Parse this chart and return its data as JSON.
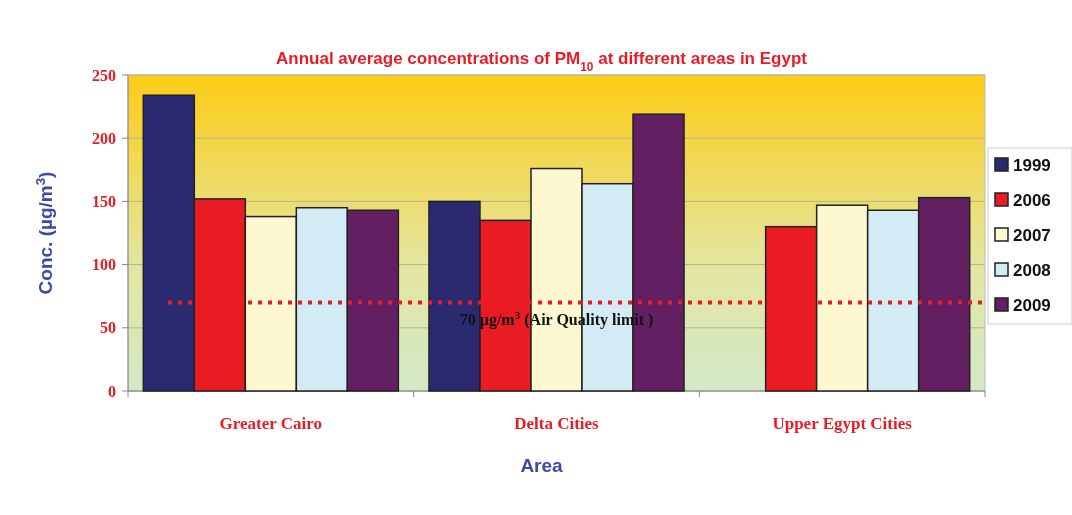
{
  "chart_data": {
    "type": "bar",
    "title": "Annual average concentrations of PM$_{10}$ at different  areas in Egypt",
    "xlabel": "Area",
    "ylabel": "Conc. (µg/m$^{3}$)",
    "categories": [
      "Greater Cairo",
      "Delta Cities",
      "Upper Egypt Cities"
    ],
    "series": [
      {
        "name": "1999",
        "color": "#2b2a70",
        "values": [
          234,
          150,
          null
        ]
      },
      {
        "name": "2006",
        "color": "#e91c24",
        "values": [
          152,
          135,
          130
        ]
      },
      {
        "name": "2007",
        "color": "#fdf8cf",
        "values": [
          138,
          176,
          147
        ]
      },
      {
        "name": "2008",
        "color": "#d3ebf4",
        "values": [
          145,
          164,
          143
        ]
      },
      {
        "name": "2009",
        "color": "#621f61",
        "values": [
          143,
          219,
          153
        ]
      }
    ],
    "ylim": [
      0,
      250
    ],
    "yticks": [
      0,
      50,
      100,
      150,
      200,
      250
    ],
    "grid": "y",
    "legend": "right",
    "ref_lines": [
      {
        "axis": "y",
        "value": 70,
        "label": "70 µg/m$^{3}$ (Air Quality limit )",
        "color": "#e91c24",
        "line_style": "dotted"
      }
    ]
  }
}
